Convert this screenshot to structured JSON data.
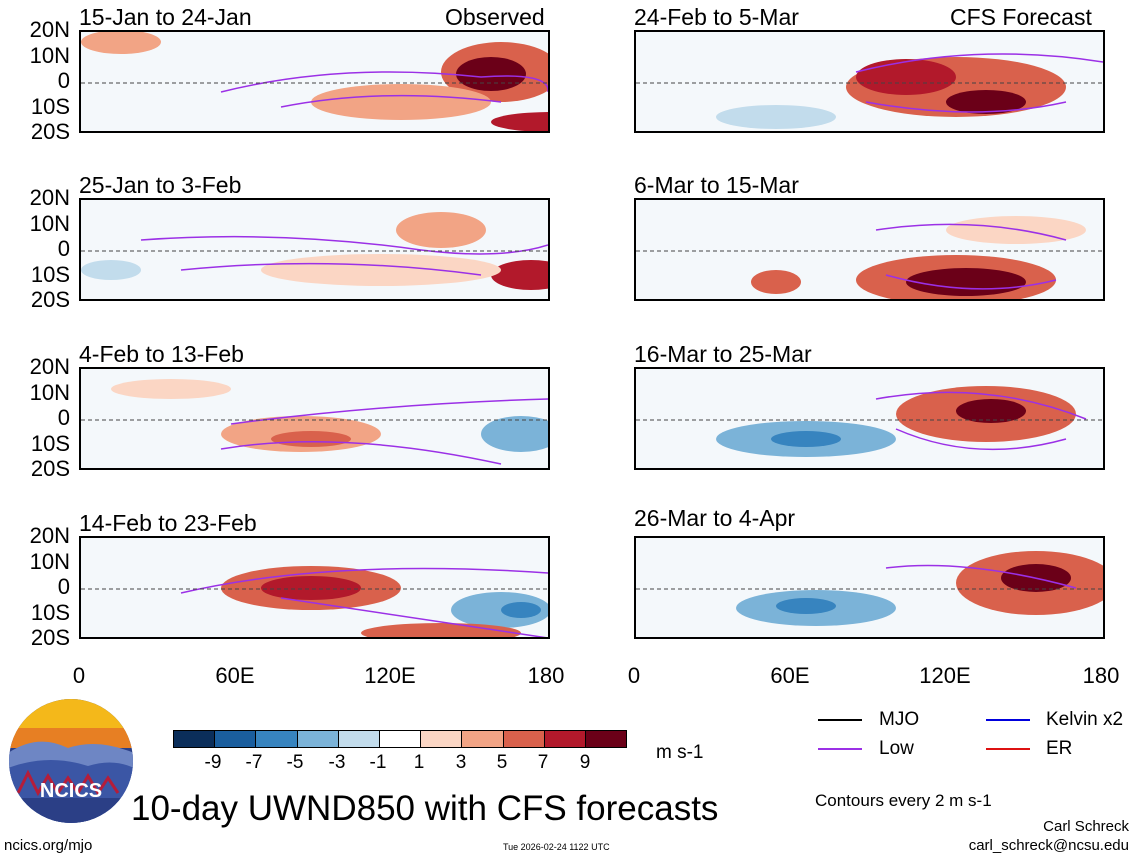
{
  "panels": [
    {
      "title": "15-Jan to 24-Jan",
      "tag": "Observed"
    },
    {
      "title": "24-Feb to 5-Mar",
      "tag": "CFS Forecast"
    },
    {
      "title": "25-Jan to 3-Feb",
      "tag": ""
    },
    {
      "title": "6-Mar to 15-Mar",
      "tag": ""
    },
    {
      "title": "4-Feb to 13-Feb",
      "tag": ""
    },
    {
      "title": "16-Mar to 25-Mar",
      "tag": ""
    },
    {
      "title": "14-Feb to 23-Feb",
      "tag": ""
    },
    {
      "title": "26-Mar to 4-Apr",
      "tag": ""
    }
  ],
  "lat_ticks": [
    "20N",
    "10N",
    "0",
    "10S",
    "20S"
  ],
  "lon_ticks": [
    "0",
    "60E",
    "120E",
    "180"
  ],
  "colorbar": {
    "ticks": [
      "-9",
      "-7",
      "-5",
      "-3",
      "-1",
      "1",
      "3",
      "5",
      "7",
      "9"
    ],
    "units": "m s-1",
    "colors": [
      "#0b2e5a",
      "#1a5e9e",
      "#3784bf",
      "#7bb3d8",
      "#c2dcec",
      "#ffffff",
      "#fbd6c4",
      "#f2a485",
      "#d9614c",
      "#b2192b",
      "#6b0018"
    ]
  },
  "legend": [
    {
      "label": "MJO",
      "color": "#000000"
    },
    {
      "label": "Low",
      "color": "#9b30e6"
    },
    {
      "label": "Kelvin x2",
      "color": "#0000dd"
    },
    {
      "label": "ER",
      "color": "#dd1111"
    }
  ],
  "contour_note": "Contours every 2 m s-1",
  "main_title": "10-day UWND850 with CFS forecasts",
  "logo_text": "NCICS",
  "website": "ncics.org/mjo",
  "timestamp": "Tue 2026-02-24 1122 UTC",
  "author": "Carl Schreck",
  "email": "carl_schreck@ncsu.edu"
}
